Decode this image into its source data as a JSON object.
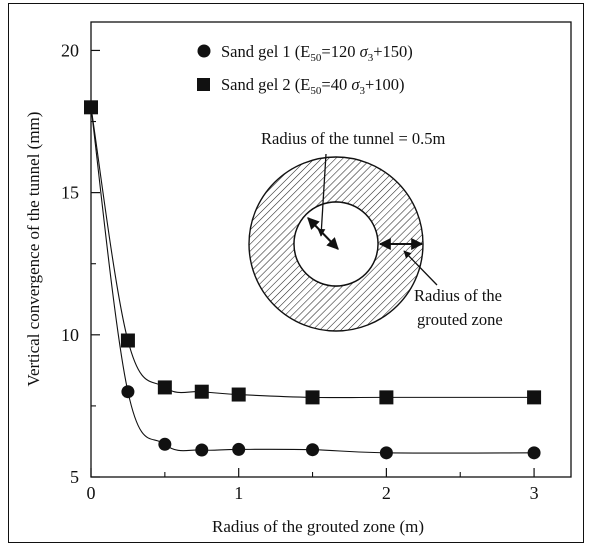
{
  "chart_data": {
    "type": "line",
    "x": [
      0,
      0.25,
      0.5,
      0.75,
      1,
      1.5,
      2,
      3
    ],
    "series": [
      {
        "name": "Sand gel 1",
        "equation_lhs": "E",
        "equation_lhs_sub": "50",
        "equation_mid": "=120 ",
        "equation_sigma": "σ",
        "equation_sigma_sub": "3",
        "equation_tail": "+150)",
        "marker": "circle",
        "values": [
          18.0,
          8.0,
          6.15,
          5.95,
          5.97,
          5.96,
          5.85,
          5.85
        ]
      },
      {
        "name": "Sand gel 2",
        "equation_lhs": "E",
        "equation_lhs_sub": "50",
        "equation_mid": "=40 ",
        "equation_sigma": "σ",
        "equation_sigma_sub": "3",
        "equation_tail": "+100)",
        "marker": "square",
        "values": [
          18.0,
          9.8,
          8.15,
          8.0,
          7.9,
          7.8,
          7.8,
          7.8
        ]
      }
    ],
    "xlabel": "Radius of the grouted zone (m)",
    "ylabel": "Vertical convergence of the tunnel (mm)",
    "xlim": [
      0,
      3.25
    ],
    "ylim": [
      5,
      21
    ],
    "xticks": [
      0,
      1,
      2,
      3
    ],
    "xtick_labels": [
      "0",
      "1",
      "2",
      "3"
    ],
    "xticks_minor": [
      0.5,
      1.5,
      2.5
    ],
    "yticks": [
      5,
      10,
      15,
      20
    ],
    "ytick_labels": [
      "5",
      "10",
      "15",
      "20"
    ],
    "yticks_minor": [
      7.5,
      12.5,
      17.5
    ],
    "grid": false,
    "legend_position": "top-center",
    "annotations": {
      "tunnel_radius": "Radius of the tunnel = 0.5m",
      "grouted_radius_line1": "Radius of the",
      "grouted_radius_line2": "grouted zone"
    },
    "colors": {
      "ink": "#111111",
      "background": "#ffffff"
    }
  }
}
